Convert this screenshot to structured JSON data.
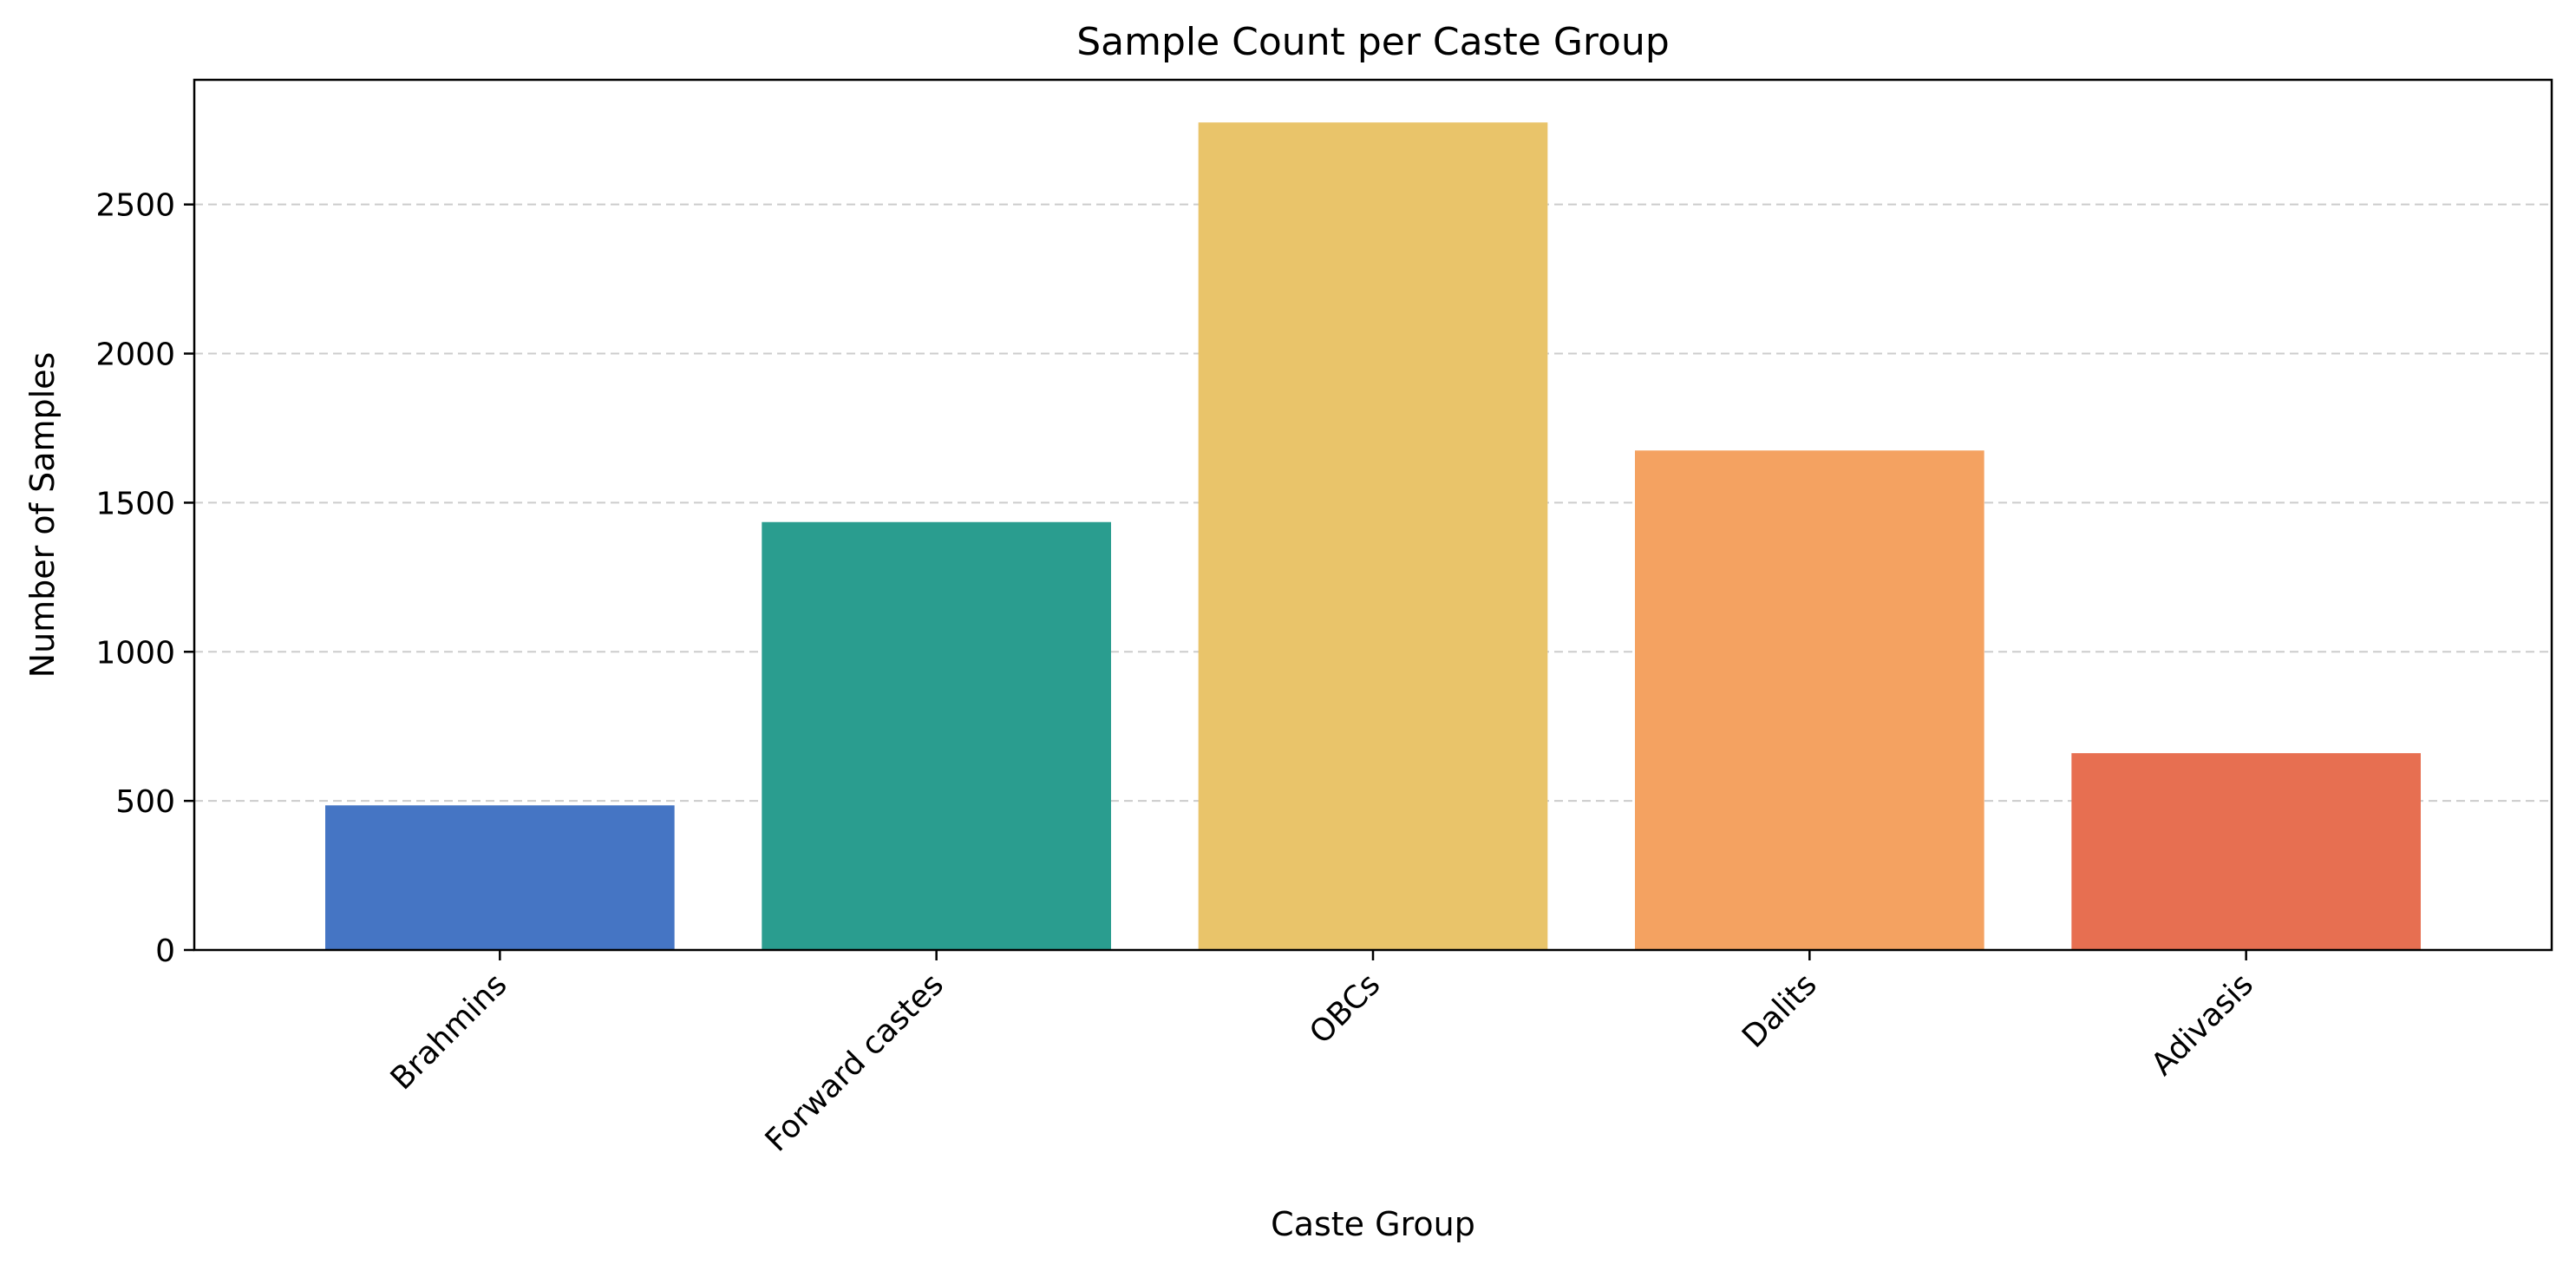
{
  "chart_data": {
    "type": "bar",
    "title": "Sample Count per Caste Group",
    "xlabel": "Caste Group",
    "ylabel": "Number of Samples",
    "categories": [
      "Brahmins",
      "Forward castes",
      "OBCs",
      "Dalits",
      "Adivasis"
    ],
    "values": [
      485,
      1435,
      2775,
      1675,
      660
    ],
    "colors": [
      "#4575c4",
      "#2a9d8f",
      "#e9c46a",
      "#f4a261",
      "#e76f51"
    ],
    "ylim": [
      0,
      2918
    ],
    "yticks": [
      0,
      500,
      1000,
      1500,
      2000,
      2500
    ],
    "grid": {
      "y": true,
      "x": false,
      "style": "dashed",
      "color": "#cccccc"
    },
    "xtick_rotation": -45,
    "legend": "none"
  }
}
